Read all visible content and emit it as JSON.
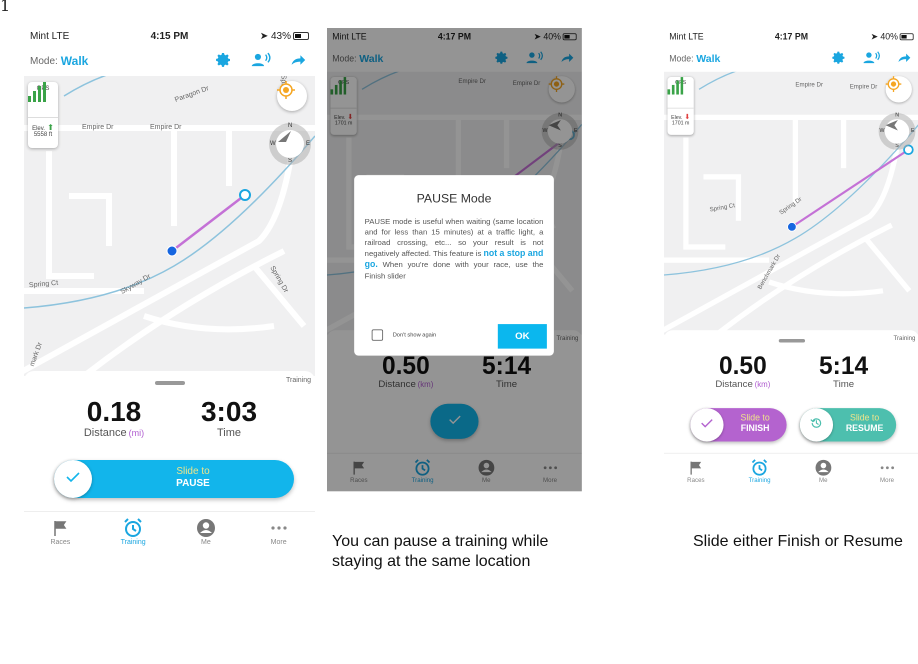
{
  "figure_label": "1",
  "colors": {
    "accent": "#1aa6e0",
    "pause": "#12b5eb",
    "finish": "#b463cf",
    "resume": "#4dbfae",
    "route": "#c471d6",
    "gps": "#3aa348",
    "river": "#8dc3dd"
  },
  "phones": [
    {
      "status": {
        "carrier": "Mint  LTE",
        "time": "4:15 PM",
        "battery": "43%",
        "battery_level": 43
      },
      "header": {
        "mode_label": "Mode:",
        "mode_value": "Walk",
        "icons": [
          "gear-icon",
          "voice-icon",
          "share-icon"
        ]
      },
      "map": {
        "roads": [
          "Paragon Dr",
          "Empire Dr",
          "Empire Dr",
          "Spring Dr",
          "Spring Ct",
          "Skyway Dr",
          "Spring Dr",
          "mark Dr"
        ],
        "gps_label": "GPS",
        "elev_label": "Elev.",
        "elev_value": "5558 ft",
        "elev_trend": "up",
        "compass": [
          "N",
          "W",
          "E",
          "S"
        ]
      },
      "sheet": {
        "label": "Training",
        "distance": "0.18",
        "distance_label": "Distance",
        "distance_unit": "(mi)",
        "time": "3:03",
        "time_label": "Time"
      },
      "sliders": [
        {
          "top": "Slide to",
          "bottom": "PAUSE",
          "color": "#12b5eb",
          "icon": "check-icon"
        }
      ],
      "tabs": [
        {
          "label": "Races",
          "icon": "flag-icon"
        },
        {
          "label": "Training",
          "icon": "alarm-clock-icon",
          "active": true
        },
        {
          "label": "Me",
          "icon": "person-icon"
        },
        {
          "label": "More",
          "icon": "more-icon"
        }
      ]
    },
    {
      "status": {
        "carrier": "Mint  LTE",
        "time": "4:17 PM",
        "battery": "40%",
        "battery_level": 40
      },
      "header": {
        "mode_label": "Mode:",
        "mode_value": "Walk",
        "icons": [
          "gear-icon",
          "voice-icon",
          "share-icon"
        ]
      },
      "map": {
        "roads": [
          "Empire Dr",
          "Empire Dr"
        ],
        "gps_label": "GPS",
        "elev_label": "Elev.",
        "elev_value": "1701 m",
        "elev_trend": "down",
        "compass": [
          "N",
          "W",
          "E",
          "S"
        ]
      },
      "sheet": {
        "label": "Training",
        "distance": "0.50",
        "distance_label": "Distance",
        "distance_unit": "(km)",
        "time": "5:14",
        "time_label": "Time"
      },
      "sliders": [
        {
          "collapsed": true,
          "color": "#12b5eb",
          "icon": "check-icon"
        }
      ],
      "tabs": [
        {
          "label": "Races",
          "icon": "flag-icon"
        },
        {
          "label": "Training",
          "icon": "alarm-clock-icon",
          "active": true
        },
        {
          "label": "Me",
          "icon": "person-icon"
        },
        {
          "label": "More",
          "icon": "more-icon"
        }
      ],
      "dialog": {
        "title": "PAUSE Mode",
        "text_before": "PAUSE mode is useful when waiting (same location and for less than 15 minutes) at a traffic light, a railroad crossing, etc... so your result is not negatively affected. This feature is ",
        "text_bold": "not a stop and go.",
        "text_after": " When you're done with your race, use the Finish slider",
        "checkbox_label": "Don't show again",
        "checked": false,
        "ok": "OK"
      }
    },
    {
      "status": {
        "carrier": "Mint  LTE",
        "time": "4:17 PM",
        "battery": "40%",
        "battery_level": 40
      },
      "header": {
        "mode_label": "Mode:",
        "mode_value": "Walk",
        "icons": [
          "gear-icon",
          "voice-icon",
          "share-icon"
        ]
      },
      "map": {
        "roads": [
          "Empire Dr",
          "Empire Dr",
          "Spring Ct",
          "Spring Dr",
          "Benchmark Dr"
        ],
        "gps_label": "GPS",
        "elev_label": "Elev.",
        "elev_value": "1701 m",
        "elev_trend": "down",
        "compass": [
          "N",
          "W",
          "E",
          "S"
        ]
      },
      "sheet": {
        "label": "Training",
        "distance": "0.50",
        "distance_label": "Distance",
        "distance_unit": "(km)",
        "time": "5:14",
        "time_label": "Time"
      },
      "sliders": [
        {
          "top": "Slide to",
          "bottom": "FINISH",
          "color": "#b463cf",
          "icon": "check-icon"
        },
        {
          "top": "Slide to",
          "bottom": "RESUME",
          "color": "#4dbfae",
          "icon": "history-icon"
        }
      ],
      "tabs": [
        {
          "label": "Races",
          "icon": "flag-icon"
        },
        {
          "label": "Training",
          "icon": "alarm-clock-icon",
          "active": true
        },
        {
          "label": "Me",
          "icon": "person-icon"
        },
        {
          "label": "More",
          "icon": "more-icon"
        }
      ]
    }
  ],
  "captions": [
    "You can pause a training while staying at the same location",
    "Slide either Finish or Resume"
  ]
}
